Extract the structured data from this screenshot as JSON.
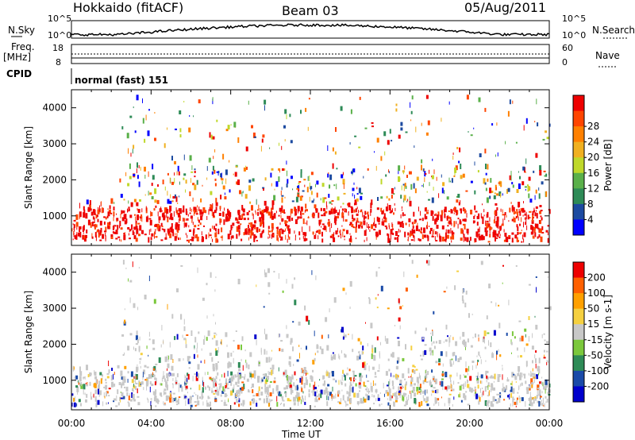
{
  "header": {
    "left": "Hokkaido (fitACF)",
    "center": "Beam 03",
    "right": "05/Aug/2011"
  },
  "side_labels": {
    "nsky": "N.Sky",
    "freq": "Freq.",
    "freq_unit": "[MHz]",
    "cpid": "CPID",
    "nsearch": "N.Search",
    "nave": "Nave",
    "cpid_text": "normal (fast) 151"
  },
  "small_axes": {
    "nsky_ticks": [
      "10^5",
      "10^0"
    ],
    "freq_ticks": [
      "18",
      "8"
    ],
    "nsearch_ticks": [
      "10^5",
      "10^0"
    ],
    "nave_ticks": [
      "60",
      "0"
    ]
  },
  "chart_data": [
    {
      "type": "heatmap",
      "ylabel": "Slant Range [km]",
      "xlabel": "",
      "yticks": [
        "1000",
        "2000",
        "3000",
        "4000"
      ],
      "ylim": [
        180,
        4500
      ],
      "colorbar_label": "Power [dB]",
      "colorbar_ticks": [
        "4",
        "8",
        "12",
        "16",
        "20",
        "24",
        "28"
      ],
      "colorbar_colors": [
        "#0000ff",
        "#1c4aa0",
        "#2e8b57",
        "#5ab04a",
        "#bfd82a",
        "#f0b020",
        "#ff8000",
        "#ff4500",
        "#ee0000"
      ]
    },
    {
      "type": "heatmap",
      "ylabel": "Slant Range [km]",
      "xlabel": "Time UT",
      "yticks": [
        "1000",
        "2000",
        "3000",
        "4000"
      ],
      "ylim": [
        180,
        4500
      ],
      "xticks": [
        "00:00",
        "04:00",
        "08:00",
        "12:00",
        "16:00",
        "20:00",
        "00:00"
      ],
      "colorbar_label": "Velocity [m s-1]",
      "colorbar_ticks": [
        "200",
        "100",
        "50",
        "15",
        "-15",
        "-50",
        "-100",
        "-200"
      ],
      "colorbar_colors": [
        "#0000cc",
        "#1a4aa8",
        "#2e8b57",
        "#7bc83c",
        "#c8c8c8",
        "#f5d040",
        "#ffa000",
        "#ff6000",
        "#ee0000"
      ]
    }
  ]
}
